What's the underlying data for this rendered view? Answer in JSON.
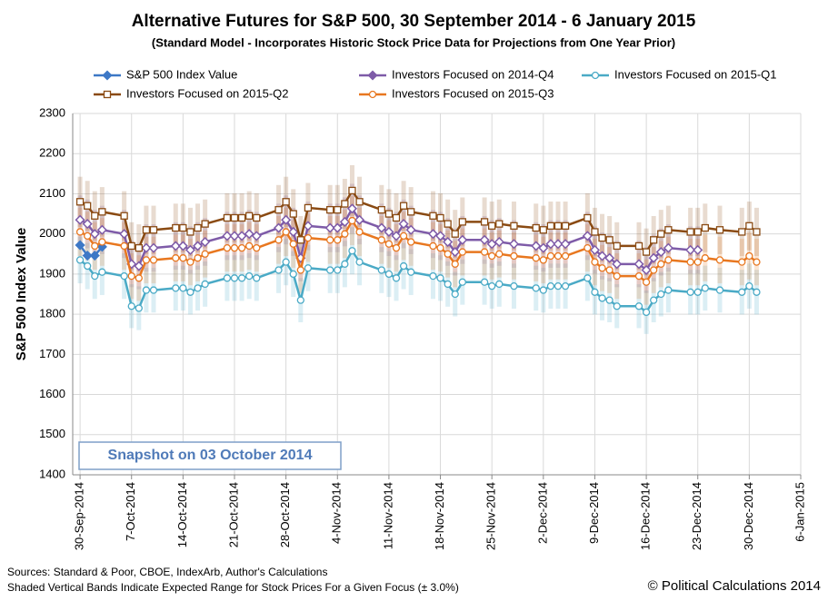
{
  "chart_data": {
    "type": "line",
    "title": "Alternative Futures for S&P 500, 30 September 2014 - 6 January 2015",
    "subtitle": "(Standard Model - Incorporates Historic Stock Price Data for Projections from One Year Prior)",
    "y_label": "S&P 500 Index Value",
    "annotation": "Snapshot on 03 October 2014",
    "source": "Sources: Standard & Poor, CBOE, IndexArb, Author's Calculations",
    "footnote": "Shaded Vertical Bands Indicate Expected Range for Stock Prices For a Given Focus (± 3.0%)",
    "credit": "© Political Calculations 2014",
    "band_percent": 3.0,
    "grid": true,
    "x": [
      "2014-09-30",
      "2014-10-01",
      "2014-10-02",
      "2014-10-03",
      "2014-10-06",
      "2014-10-07",
      "2014-10-08",
      "2014-10-09",
      "2014-10-10",
      "2014-10-13",
      "2014-10-14",
      "2014-10-15",
      "2014-10-16",
      "2014-10-17",
      "2014-10-20",
      "2014-10-21",
      "2014-10-22",
      "2014-10-23",
      "2014-10-24",
      "2014-10-27",
      "2014-10-28",
      "2014-10-29",
      "2014-10-30",
      "2014-10-31",
      "2014-11-03",
      "2014-11-04",
      "2014-11-05",
      "2014-11-06",
      "2014-11-07",
      "2014-11-10",
      "2014-11-11",
      "2014-11-12",
      "2014-11-13",
      "2014-11-14",
      "2014-11-17",
      "2014-11-18",
      "2014-11-19",
      "2014-11-20",
      "2014-11-21",
      "2014-11-24",
      "2014-11-25",
      "2014-11-26",
      "2014-11-28",
      "2014-12-01",
      "2014-12-02",
      "2014-12-03",
      "2014-12-04",
      "2014-12-05",
      "2014-12-08",
      "2014-12-09",
      "2014-12-10",
      "2014-12-11",
      "2014-12-12",
      "2014-12-15",
      "2014-12-16",
      "2014-12-17",
      "2014-12-18",
      "2014-12-19",
      "2014-12-22",
      "2014-12-23",
      "2014-12-24",
      "2014-12-26",
      "2014-12-29",
      "2014-12-30",
      "2014-12-31"
    ],
    "xlim": [
      "2014-09-29",
      "2015-01-06"
    ],
    "xticks": [
      {
        "value": "2014-09-30",
        "label": "30-Sep-2014"
      },
      {
        "value": "2014-10-07",
        "label": "7-Oct-2014"
      },
      {
        "value": "2014-10-14",
        "label": "14-Oct-2014"
      },
      {
        "value": "2014-10-21",
        "label": "21-Oct-2014"
      },
      {
        "value": "2014-10-28",
        "label": "28-Oct-2014"
      },
      {
        "value": "2014-11-04",
        "label": "4-Nov-2014"
      },
      {
        "value": "2014-11-11",
        "label": "11-Nov-2014"
      },
      {
        "value": "2014-11-18",
        "label": "18-Nov-2014"
      },
      {
        "value": "2014-11-25",
        "label": "25-Nov-2014"
      },
      {
        "value": "2014-12-02",
        "label": "2-Dec-2014"
      },
      {
        "value": "2014-12-09",
        "label": "9-Dec-2014"
      },
      {
        "value": "2014-12-16",
        "label": "16-Dec-2014"
      },
      {
        "value": "2014-12-23",
        "label": "23-Dec-2014"
      },
      {
        "value": "2014-12-30",
        "label": "30-Dec-2014"
      },
      {
        "value": "2015-01-06",
        "label": "6-Jan-2015"
      }
    ],
    "ylim": [
      1400,
      2300
    ],
    "yticks": [
      1400,
      1500,
      1600,
      1700,
      1800,
      1900,
      2000,
      2100,
      2200,
      2300
    ],
    "series": [
      {
        "name": "S&P 500 Index Value",
        "color": "#3d78c6",
        "marker": "diamond",
        "band": false,
        "values": [
          1972,
          1946,
          1946,
          1968,
          null,
          null,
          null,
          null,
          null,
          null,
          null,
          null,
          null,
          null,
          null,
          null,
          null,
          null,
          null,
          null,
          null,
          null,
          null,
          null,
          null,
          null,
          null,
          null,
          null,
          null,
          null,
          null,
          null,
          null,
          null,
          null,
          null,
          null,
          null,
          null,
          null,
          null,
          null,
          null,
          null,
          null,
          null,
          null,
          null,
          null,
          null,
          null,
          null,
          null,
          null,
          null,
          null,
          null,
          null,
          null,
          null,
          null,
          null,
          null,
          null
        ]
      },
      {
        "name": "Investors Focused on 2014-Q4",
        "color": "#7e5ba8",
        "marker": "diamond",
        "band": true,
        "values": [
          2035,
          2025,
          2000,
          2010,
          2000,
          1925,
          1920,
          1965,
          1965,
          1970,
          1970,
          1960,
          1970,
          1980,
          1995,
          1995,
          1995,
          2000,
          1995,
          2015,
          2035,
          2005,
          1940,
          2020,
          2015,
          2015,
          2030,
          2063,
          2035,
          2015,
          2005,
          1995,
          2025,
          2010,
          2000,
          1995,
          1980,
          1955,
          1985,
          1985,
          1975,
          1980,
          1975,
          1970,
          1965,
          1975,
          1975,
          1975,
          1995,
          1960,
          1945,
          1940,
          1925,
          1925,
          1910,
          1940,
          1955,
          1965,
          1960,
          1960,
          null,
          null,
          null,
          null,
          null
        ]
      },
      {
        "name": "Investors Focused on 2015-Q1",
        "color": "#4aaac6",
        "marker": "circle",
        "band": true,
        "values": [
          1935,
          1920,
          1895,
          1905,
          1895,
          1820,
          1815,
          1860,
          1860,
          1865,
          1865,
          1855,
          1865,
          1875,
          1890,
          1890,
          1890,
          1895,
          1890,
          1910,
          1930,
          1900,
          1835,
          1915,
          1910,
          1910,
          1925,
          1958,
          1930,
          1910,
          1900,
          1890,
          1920,
          1905,
          1895,
          1890,
          1875,
          1850,
          1880,
          1880,
          1870,
          1875,
          1870,
          1865,
          1860,
          1870,
          1870,
          1870,
          1890,
          1855,
          1840,
          1835,
          1820,
          1820,
          1805,
          1835,
          1850,
          1860,
          1855,
          1855,
          1865,
          1860,
          1855,
          1870,
          1855
        ]
      },
      {
        "name": "Investors Focused on 2015-Q2",
        "color": "#8a4a12",
        "marker": "square",
        "band": true,
        "values": [
          2080,
          2070,
          2045,
          2055,
          2045,
          1970,
          1965,
          2010,
          2010,
          2015,
          2015,
          2005,
          2015,
          2025,
          2040,
          2040,
          2040,
          2045,
          2040,
          2060,
          2080,
          2050,
          1985,
          2065,
          2060,
          2060,
          2075,
          2108,
          2080,
          2060,
          2050,
          2040,
          2070,
          2055,
          2045,
          2040,
          2025,
          2000,
          2030,
          2030,
          2020,
          2025,
          2020,
          2015,
          2010,
          2020,
          2020,
          2020,
          2040,
          2005,
          1990,
          1985,
          1970,
          1970,
          1955,
          1985,
          2000,
          2010,
          2005,
          2005,
          2015,
          2010,
          2005,
          2020,
          2005
        ]
      },
      {
        "name": "Investors Focused on 2015-Q3",
        "color": "#e8771f",
        "marker": "circle",
        "band": true,
        "values": [
          2005,
          1995,
          1970,
          1980,
          1970,
          1895,
          1890,
          1935,
          1935,
          1940,
          1940,
          1930,
          1940,
          1950,
          1965,
          1965,
          1965,
          1970,
          1965,
          1985,
          2005,
          1975,
          1910,
          1990,
          1985,
          1985,
          2000,
          2033,
          2005,
          1985,
          1975,
          1965,
          1995,
          1980,
          1970,
          1965,
          1950,
          1925,
          1955,
          1955,
          1945,
          1950,
          1945,
          1940,
          1935,
          1945,
          1945,
          1945,
          1965,
          1930,
          1915,
          1910,
          1895,
          1895,
          1880,
          1910,
          1925,
          1935,
          1930,
          1930,
          1940,
          1935,
          1930,
          1945,
          1930
        ]
      }
    ]
  }
}
